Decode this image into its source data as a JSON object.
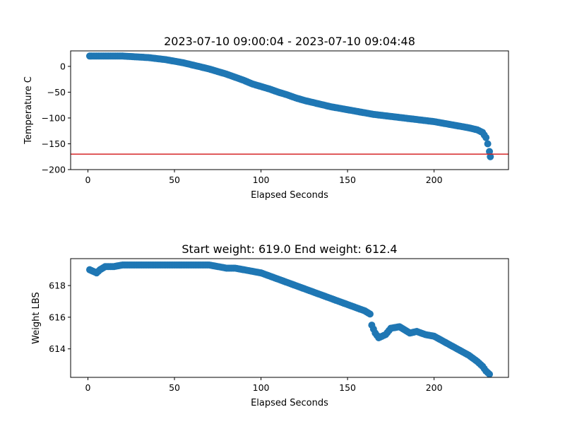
{
  "chart_data": [
    {
      "type": "scatter",
      "title": "2023-07-10 09:00:04 - 2023-07-10 09:04:48",
      "xlabel": "Elapsed Seconds",
      "ylabel": "Temperature C",
      "xlim": [
        -10,
        243
      ],
      "ylim": [
        -200,
        30
      ],
      "xticks": [
        0,
        50,
        100,
        150,
        200
      ],
      "yticks": [
        0,
        -50,
        -100,
        -150,
        -200
      ],
      "marker_color": "#1f77b4",
      "hline": {
        "y": -170,
        "color": "#d62728"
      },
      "points": [
        [
          1,
          20
        ],
        [
          5,
          20
        ],
        [
          10,
          20
        ],
        [
          15,
          20
        ],
        [
          20,
          20
        ],
        [
          25,
          19
        ],
        [
          30,
          18
        ],
        [
          35,
          17
        ],
        [
          40,
          15
        ],
        [
          45,
          13
        ],
        [
          50,
          10
        ],
        [
          55,
          7
        ],
        [
          60,
          3
        ],
        [
          65,
          -1
        ],
        [
          70,
          -5
        ],
        [
          75,
          -10
        ],
        [
          80,
          -15
        ],
        [
          85,
          -21
        ],
        [
          90,
          -27
        ],
        [
          95,
          -34
        ],
        [
          100,
          -39
        ],
        [
          105,
          -44
        ],
        [
          110,
          -50
        ],
        [
          115,
          -55
        ],
        [
          120,
          -61
        ],
        [
          125,
          -66
        ],
        [
          130,
          -70
        ],
        [
          135,
          -74
        ],
        [
          140,
          -78
        ],
        [
          145,
          -81
        ],
        [
          150,
          -84
        ],
        [
          155,
          -87
        ],
        [
          160,
          -90
        ],
        [
          165,
          -93
        ],
        [
          170,
          -95
        ],
        [
          175,
          -97
        ],
        [
          180,
          -99
        ],
        [
          185,
          -101
        ],
        [
          190,
          -103
        ],
        [
          195,
          -105
        ],
        [
          200,
          -107
        ],
        [
          205,
          -110
        ],
        [
          210,
          -113
        ],
        [
          215,
          -116
        ],
        [
          220,
          -119
        ],
        [
          225,
          -123
        ],
        [
          228,
          -128
        ],
        [
          230,
          -138
        ],
        [
          231,
          -150
        ],
        [
          232,
          -165
        ],
        [
          232.5,
          -175
        ]
      ]
    },
    {
      "type": "scatter",
      "title": "Start weight: 619.0 End weight: 612.4",
      "xlabel": "Elapsed Seconds",
      "ylabel": "Weight LBS",
      "xlim": [
        -10,
        243
      ],
      "ylim": [
        612.2,
        619.7
      ],
      "xticks": [
        0,
        50,
        100,
        150,
        200
      ],
      "yticks": [
        614,
        616,
        618
      ],
      "marker_color": "#1f77b4",
      "points": [
        [
          1,
          619.0
        ],
        [
          3,
          618.9
        ],
        [
          5,
          618.8
        ],
        [
          7,
          619.0
        ],
        [
          10,
          619.2
        ],
        [
          15,
          619.2
        ],
        [
          20,
          619.3
        ],
        [
          25,
          619.3
        ],
        [
          30,
          619.3
        ],
        [
          35,
          619.3
        ],
        [
          40,
          619.3
        ],
        [
          45,
          619.3
        ],
        [
          50,
          619.3
        ],
        [
          55,
          619.3
        ],
        [
          60,
          619.3
        ],
        [
          65,
          619.3
        ],
        [
          70,
          619.3
        ],
        [
          75,
          619.2
        ],
        [
          80,
          619.1
        ],
        [
          85,
          619.1
        ],
        [
          90,
          619.0
        ],
        [
          95,
          618.9
        ],
        [
          100,
          618.8
        ],
        [
          105,
          618.6
        ],
        [
          110,
          618.4
        ],
        [
          115,
          618.2
        ],
        [
          120,
          618.0
        ],
        [
          125,
          617.8
        ],
        [
          130,
          617.6
        ],
        [
          135,
          617.4
        ],
        [
          140,
          617.2
        ],
        [
          145,
          617.0
        ],
        [
          150,
          616.8
        ],
        [
          155,
          616.6
        ],
        [
          160,
          616.4
        ],
        [
          163,
          616.2
        ],
        [
          164,
          615.5
        ],
        [
          166,
          615.0
        ],
        [
          168,
          614.7
        ],
        [
          172,
          614.9
        ],
        [
          175,
          615.3
        ],
        [
          180,
          615.4
        ],
        [
          183,
          615.2
        ],
        [
          186,
          615.0
        ],
        [
          190,
          615.1
        ],
        [
          195,
          614.9
        ],
        [
          200,
          614.8
        ],
        [
          205,
          614.5
        ],
        [
          210,
          614.2
        ],
        [
          215,
          613.9
        ],
        [
          220,
          613.6
        ],
        [
          225,
          613.2
        ],
        [
          228,
          612.9
        ],
        [
          230,
          612.6
        ],
        [
          232,
          612.4
        ]
      ]
    }
  ]
}
